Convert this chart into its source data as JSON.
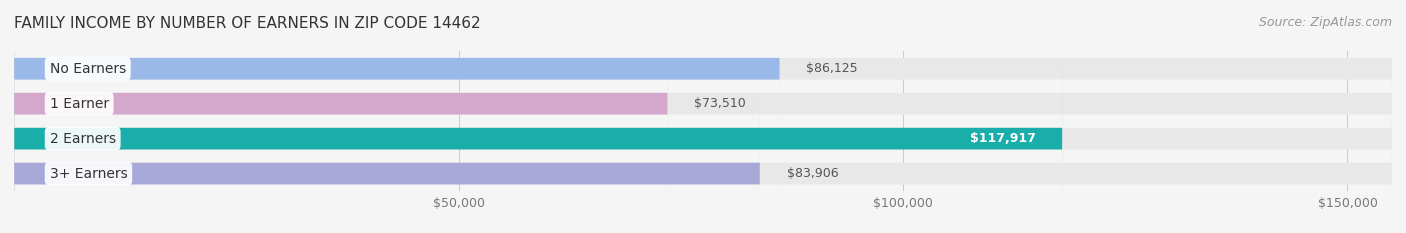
{
  "title": "FAMILY INCOME BY NUMBER OF EARNERS IN ZIP CODE 14462",
  "source": "Source: ZipAtlas.com",
  "categories": [
    "No Earners",
    "1 Earner",
    "2 Earners",
    "3+ Earners"
  ],
  "values": [
    86125,
    73510,
    117917,
    83906
  ],
  "bar_colors": [
    "#9ab8e8",
    "#d4a8cc",
    "#1aaeaa",
    "#a8a8d8"
  ],
  "label_colors": [
    "#555555",
    "#555555",
    "#ffffff",
    "#555555"
  ],
  "value_labels": [
    "$86,125",
    "$73,510",
    "$117,917",
    "$83,906"
  ],
  "xlim": [
    0,
    155000
  ],
  "xticks": [
    50000,
    100000,
    150000
  ],
  "xtick_labels": [
    "$50,000",
    "$100,000",
    "$150,000"
  ],
  "background_color": "#f0f0f0",
  "bar_background_color": "#e8e8e8",
  "title_fontsize": 11,
  "source_fontsize": 9,
  "label_fontsize": 10,
  "value_fontsize": 9,
  "bar_height": 0.62,
  "figsize": [
    14.06,
    2.33
  ],
  "dpi": 100
}
